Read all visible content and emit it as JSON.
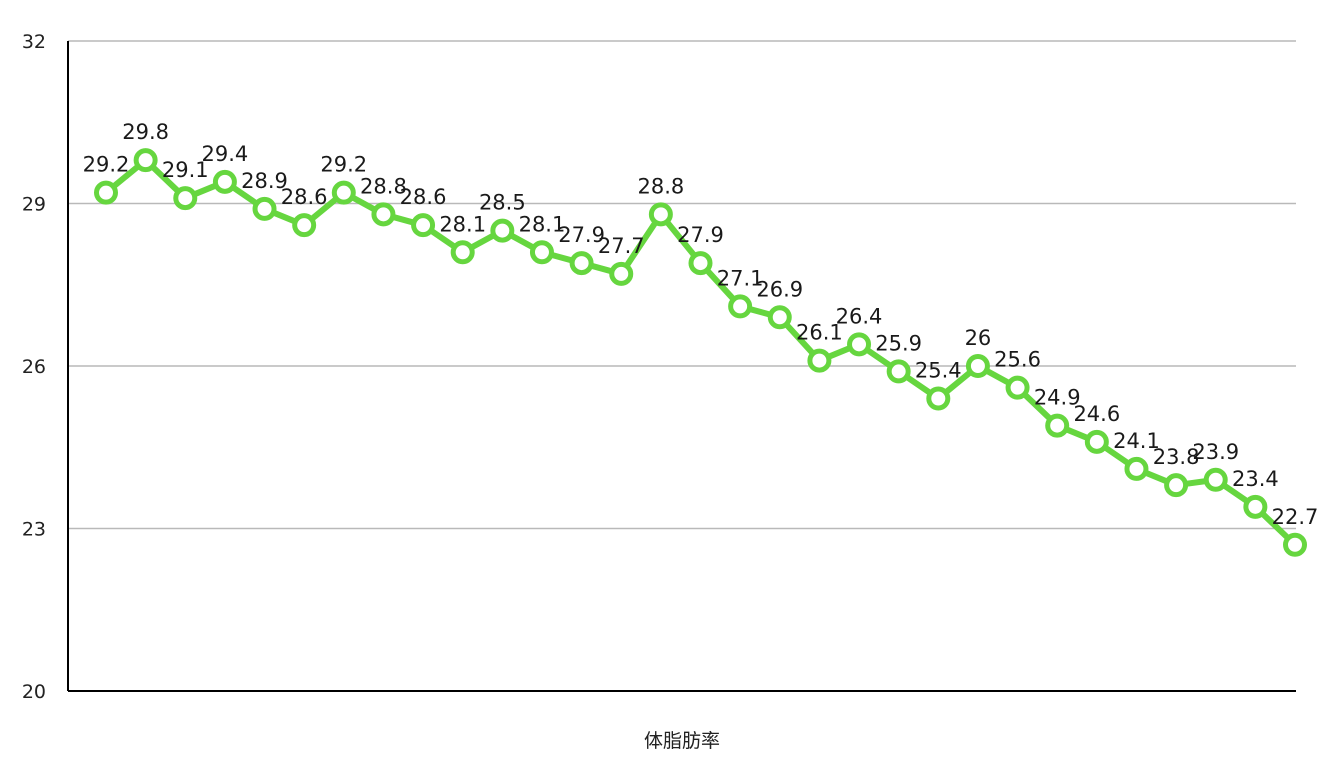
{
  "chart_data": {
    "type": "line",
    "xlabel": "体脂肪率",
    "ylabel": "",
    "ylim": [
      20,
      32
    ],
    "yticks": [
      20,
      23,
      26,
      29,
      32
    ],
    "grid": true,
    "legend": "none",
    "series": [
      {
        "color": "#66d63f",
        "values": [
          29.2,
          29.8,
          29.1,
          29.4,
          28.9,
          28.6,
          29.2,
          28.8,
          28.6,
          28.1,
          28.5,
          28.1,
          27.9,
          27.7,
          28.8,
          27.9,
          27.1,
          26.9,
          26.1,
          26.4,
          25.9,
          25.4,
          26,
          25.6,
          24.9,
          24.6,
          24.1,
          23.8,
          23.9,
          23.4,
          22.7
        ]
      }
    ]
  }
}
